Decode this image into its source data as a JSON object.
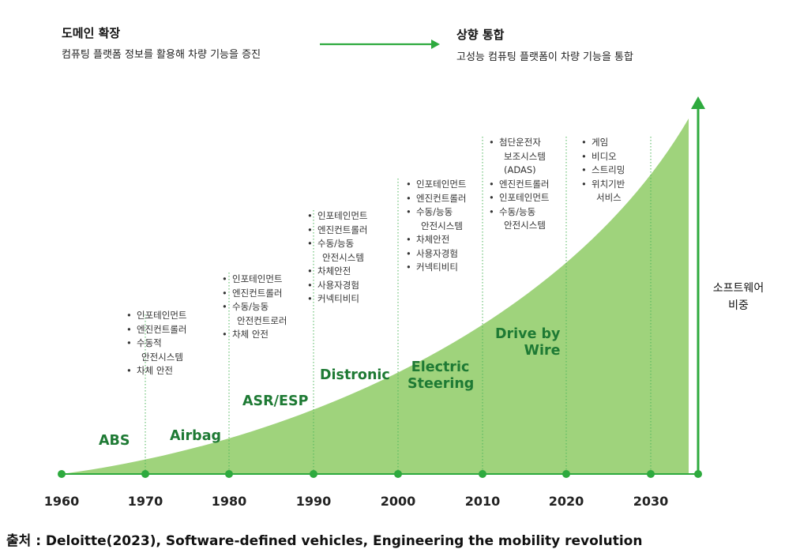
{
  "header": {
    "left_title": "도메인 확장",
    "left_subtitle": "컴퓨팅 플랫폼 정보를 활용해 차량 기능을 증진",
    "right_title": "상향 통합",
    "right_subtitle": "고성능 컴퓨팅 플랫폼이 차량 기능을 통합"
  },
  "side_label": {
    "line1": "소프트웨어",
    "line2": "비중"
  },
  "timeline": {
    "years": [
      "1960",
      "1970",
      "1980",
      "1990",
      "2000",
      "2010",
      "2020",
      "2030"
    ]
  },
  "technologies": [
    {
      "lines": [
        "ABS"
      ]
    },
    {
      "lines": [
        "Airbag"
      ]
    },
    {
      "lines": [
        "ASR/ESP"
      ]
    },
    {
      "lines": [
        "Distronic"
      ]
    },
    {
      "lines": [
        "Electric",
        "Steering"
      ]
    },
    {
      "lines": [
        "Drive by",
        "Wire"
      ]
    }
  ],
  "feature_lists": [
    {
      "items": [
        [
          "인포테인먼트"
        ],
        [
          "엔진컨트롤러"
        ],
        [
          "수동적",
          "안전시스템"
        ],
        [
          "차체 안전"
        ]
      ]
    },
    {
      "items": [
        [
          "인포테인먼트"
        ],
        [
          "엔진컨트롤러"
        ],
        [
          "수동/능동",
          "안전컨트로러"
        ],
        [
          "차체 안전"
        ]
      ]
    },
    {
      "items": [
        [
          "인포테인먼트"
        ],
        [
          "엔진컨트롤러"
        ],
        [
          "수동/능동",
          "안전시스템"
        ],
        [
          "차체안전"
        ],
        [
          "사용자경험"
        ],
        [
          "커넥티비티"
        ]
      ]
    },
    {
      "items": [
        [
          "인포테인먼트"
        ],
        [
          "엔진컨트롤러"
        ],
        [
          "수동/능동",
          "안전시스템"
        ],
        [
          "차체안전"
        ],
        [
          "사용자경험"
        ],
        [
          "커넥티비티"
        ]
      ]
    },
    {
      "items": [
        [
          "첨단운전자",
          "보조시스템",
          "(ADAS)"
        ],
        [
          "엔진컨트롤러"
        ],
        [
          "인포테인먼트"
        ],
        [
          "수동/능동",
          "안전시스템"
        ]
      ]
    },
    {
      "items": [
        [
          "게임"
        ],
        [
          "비디오"
        ],
        [
          "스트리밍"
        ],
        [
          "위치기반",
          "서비스"
        ]
      ]
    }
  ],
  "bullet_char": "•",
  "source": "출처 : Deloitte(2023), Software-defined vehicles, Engineering the mobility revolution",
  "colors": {
    "green_dark": "#1e7a34",
    "green_area": "#9fd37c",
    "green_line": "#2eaa3e"
  }
}
